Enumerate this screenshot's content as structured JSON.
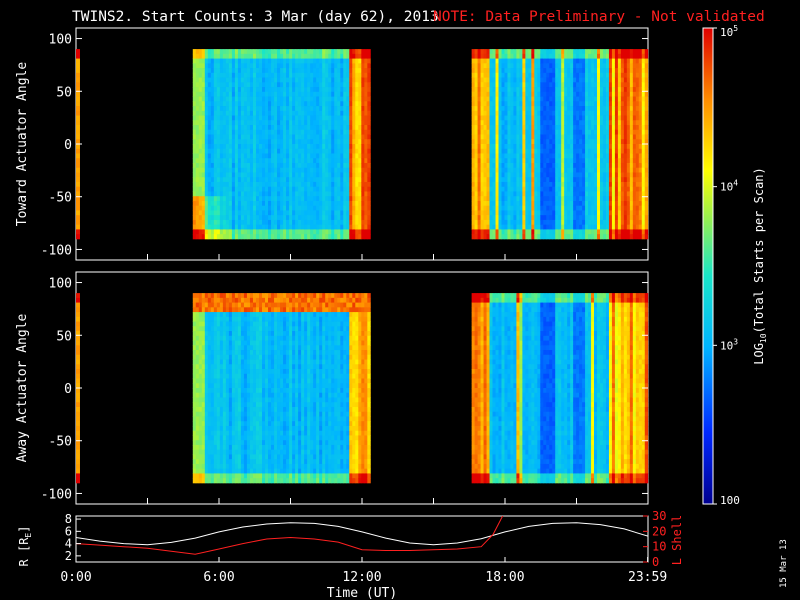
{
  "header": {
    "title": "TWINS2. Start Counts:  3 Mar (day  62), 2013",
    "note": "NOTE: Data Preliminary - Not validated"
  },
  "footer": {
    "stamp": "15 Mar 13"
  },
  "colors": {
    "background": "#000000",
    "axis": "#ffffff",
    "note": "#ff2020",
    "r_line": "#ffffff",
    "lshell_line": "#ff2020"
  },
  "chart_data": [
    {
      "type": "heatmap",
      "ylabel": "Toward Actuator Angle",
      "xlim": [
        0,
        24
      ],
      "ylim": [
        -110,
        110
      ],
      "yticks": [
        "100",
        "50",
        "0",
        "-50",
        "-100"
      ],
      "angle_range": [
        -90,
        90
      ],
      "data_intervals_hours": [
        [
          0.0,
          0.15
        ],
        [
          4.9,
          12.35
        ],
        [
          16.6,
          23.99
        ]
      ],
      "dominant_log10_counts": 2.9
    },
    {
      "type": "heatmap",
      "ylabel": "Away Actuator Angle",
      "xlim": [
        0,
        24
      ],
      "ylim": [
        -110,
        110
      ],
      "yticks": [
        "100",
        "50",
        "0",
        "-50",
        "-100"
      ],
      "angle_range": [
        -90,
        90
      ],
      "data_intervals_hours": [
        [
          0.0,
          0.15
        ],
        [
          4.9,
          12.35
        ],
        [
          16.6,
          23.99
        ]
      ],
      "dominant_log10_counts": 2.9
    },
    {
      "type": "line",
      "ylabel": "R [R",
      "ylabel_sub": "E",
      "ylabel_tail": "]",
      "ylabel2": "L Shell",
      "xlabel": "Time (UT)",
      "xticks": [
        "0:00",
        "6:00",
        "12:00",
        "18:00",
        "23:59"
      ],
      "yticks": [
        "8",
        "6",
        "4",
        "2"
      ],
      "yticks2": [
        "30",
        "20",
        "10",
        "0"
      ],
      "ylim": [
        1,
        8.5
      ],
      "ylim2": [
        0,
        30
      ],
      "series": [
        {
          "axis": "left",
          "x": [
            0,
            1,
            2,
            3,
            4,
            5,
            6,
            7,
            8,
            9,
            10,
            11,
            12,
            13,
            14,
            15,
            16,
            17,
            18,
            19,
            20,
            21,
            22,
            23,
            24
          ],
          "values": [
            5.0,
            4.4,
            4.0,
            3.8,
            4.2,
            4.9,
            5.9,
            6.7,
            7.2,
            7.4,
            7.3,
            6.8,
            5.9,
            4.9,
            4.1,
            3.8,
            4.1,
            4.8,
            5.9,
            6.8,
            7.3,
            7.4,
            7.1,
            6.4,
            5.2
          ]
        },
        {
          "axis": "right",
          "x": [
            0,
            1,
            2,
            3,
            4,
            5,
            6,
            7,
            8,
            9,
            10,
            11,
            12,
            13,
            14,
            15,
            16,
            17,
            17.5,
            18,
            23
          ],
          "values": [
            12,
            11,
            10,
            9,
            7,
            5,
            8.5,
            12,
            15,
            16,
            15,
            13,
            8,
            7.5,
            7.5,
            8,
            8.5,
            10,
            18,
            33,
            33
          ]
        }
      ]
    },
    {
      "type": "heatmap",
      "colorbar": true,
      "label": "LOG",
      "label_sub": "10",
      "label_tail": "(Total Starts per Scan)",
      "ticks": [
        "10",
        "10",
        "10",
        "100"
      ],
      "tick_sups": [
        "5",
        "4",
        "3",
        ""
      ],
      "range_log10": [
        2,
        5
      ]
    }
  ]
}
